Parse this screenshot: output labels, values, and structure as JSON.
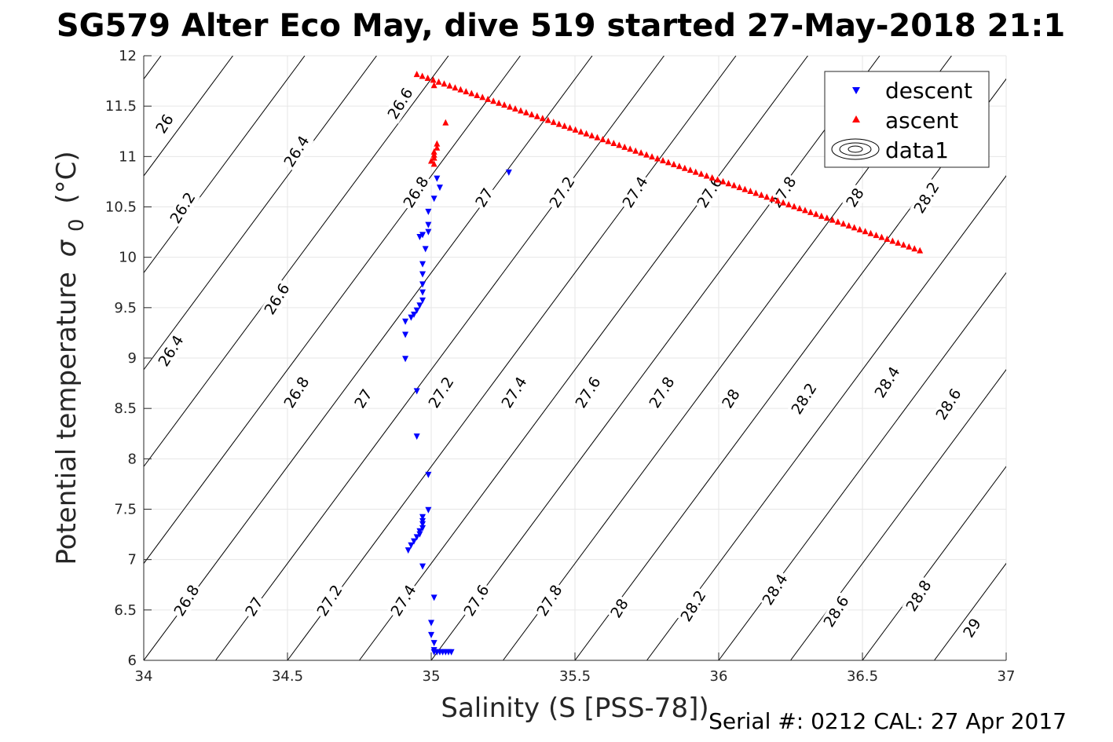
{
  "chart_data": {
    "type": "scatter",
    "title": "SG579 Alter Eco May, dive 519 started 27-May-2018 21:1",
    "xlabel": "Salinity (S [PSS-78])",
    "ylabel": "Potential temperature",
    "ylabel_symbol": "σ",
    "ylabel_subscript": "0",
    "ylabel_unit": "(°C)",
    "xlim": [
      34,
      37
    ],
    "ylim": [
      6,
      12
    ],
    "xticks": [
      "34",
      "34.5",
      "35",
      "35.5",
      "36",
      "36.5",
      "37"
    ],
    "yticks": [
      "6",
      "6.5",
      "7",
      "7.5",
      "8",
      "8.5",
      "9",
      "9.5",
      "10",
      "10.5",
      "11",
      "11.5",
      "12"
    ],
    "grid": true,
    "legend_position": "top-right",
    "legend": [
      "descent",
      "ascent",
      "data1"
    ],
    "colors": {
      "descent": "#0000ff",
      "ascent": "#ff0000",
      "contour": "#000000",
      "grid": "#e6e6e6"
    },
    "series": [
      {
        "name": "descent",
        "marker": "triangle-down",
        "points": [
          [
            35.27,
            10.84
          ],
          [
            35.02,
            10.78
          ],
          [
            35.03,
            10.69
          ],
          [
            35.01,
            10.58
          ],
          [
            34.99,
            10.45
          ],
          [
            34.99,
            10.32
          ],
          [
            34.99,
            10.25
          ],
          [
            34.97,
            10.22
          ],
          [
            34.96,
            10.2
          ],
          [
            34.98,
            10.08
          ],
          [
            34.97,
            9.93
          ],
          [
            34.97,
            9.83
          ],
          [
            34.97,
            9.73
          ],
          [
            34.97,
            9.65
          ],
          [
            34.97,
            9.57
          ],
          [
            34.96,
            9.52
          ],
          [
            34.95,
            9.47
          ],
          [
            34.94,
            9.43
          ],
          [
            34.93,
            9.4
          ],
          [
            34.91,
            9.36
          ],
          [
            34.91,
            9.23
          ],
          [
            34.91,
            8.99
          ],
          [
            34.95,
            8.67
          ],
          [
            34.95,
            8.22
          ],
          [
            34.99,
            7.84
          ],
          [
            34.99,
            7.49
          ],
          [
            34.97,
            7.42
          ],
          [
            34.97,
            7.38
          ],
          [
            34.97,
            7.35
          ],
          [
            34.97,
            7.31
          ],
          [
            34.96,
            7.28
          ],
          [
            34.96,
            7.25
          ],
          [
            34.95,
            7.22
          ],
          [
            34.94,
            7.18
          ],
          [
            34.93,
            7.14
          ],
          [
            34.92,
            7.09
          ],
          [
            34.97,
            6.93
          ],
          [
            35.01,
            6.62
          ],
          [
            35.0,
            6.37
          ],
          [
            35.0,
            6.25
          ],
          [
            35.01,
            6.17
          ],
          [
            35.01,
            6.1
          ],
          [
            35.02,
            6.08
          ],
          [
            35.03,
            6.08
          ],
          [
            35.04,
            6.08
          ],
          [
            35.05,
            6.08
          ],
          [
            35.06,
            6.08
          ],
          [
            35.07,
            6.08
          ],
          [
            35.01,
            6.08
          ]
        ]
      },
      {
        "name": "ascent",
        "marker": "triangle-up",
        "line_from": [
          34.95,
          11.82
        ],
        "line_to": [
          36.7,
          10.07
        ],
        "line_count": 93,
        "points": [
          [
            35.05,
            11.34
          ],
          [
            35.02,
            11.13
          ],
          [
            35.02,
            11.09
          ],
          [
            35.01,
            11.05
          ],
          [
            35.01,
            11.02
          ],
          [
            35.01,
            10.99
          ],
          [
            35.0,
            10.96
          ],
          [
            35.01,
            10.93
          ],
          [
            35.01,
            11.71
          ]
        ]
      }
    ],
    "contour_labels_upper": [
      "26",
      "26.2",
      "26.4",
      "26.6",
      "26.6",
      "26.8",
      "27",
      "27.2",
      "27.4",
      "27.6",
      "27.8",
      "28",
      "28.2"
    ],
    "contour_labels_middle": [
      "26.4",
      "26.6",
      "26.8",
      "27",
      "27.2",
      "27.4",
      "27.6",
      "27.8",
      "28",
      "28.2",
      "28.4",
      "28.6"
    ],
    "contour_labels_lower": [
      "26.8",
      "27",
      "27.2",
      "27.4",
      "27.6",
      "27.8",
      "28",
      "28.2",
      "28.4",
      "28.6",
      "28.8",
      "29"
    ]
  },
  "footer": {
    "serial_cal": "Serial #: 0212  CAL: 27 Apr 2017"
  }
}
